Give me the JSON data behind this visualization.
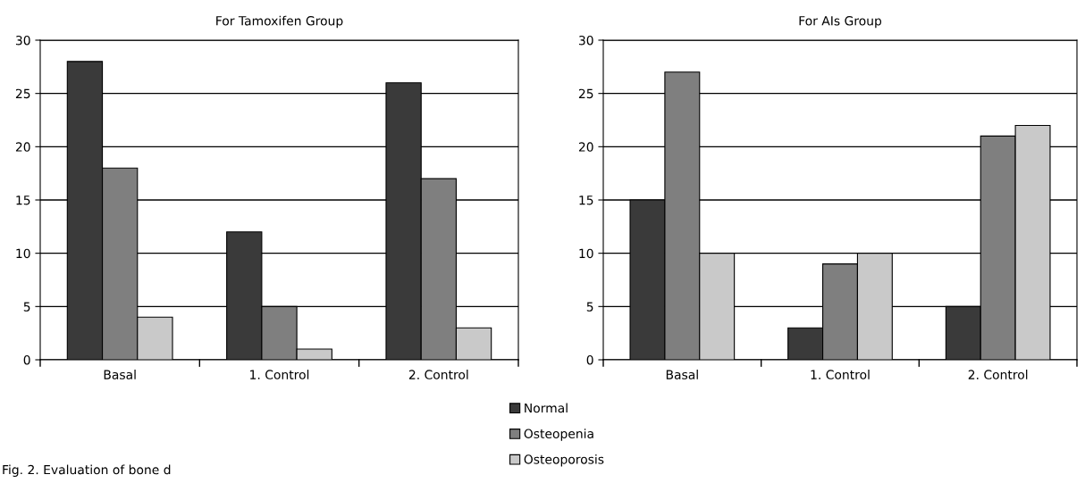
{
  "chart_data": [
    {
      "type": "bar",
      "title": "For Tamoxifen Group",
      "categories": [
        "Basal",
        "1. Control",
        "2. Control"
      ],
      "series": [
        {
          "name": "Normal",
          "color": "#3a3a3a",
          "values": [
            28,
            12,
            26
          ]
        },
        {
          "name": "Osteopenia",
          "color": "#7f7f7f",
          "values": [
            18,
            5,
            17
          ]
        },
        {
          "name": "Osteoporosis",
          "color": "#c9c9c9",
          "values": [
            4,
            1,
            3
          ]
        }
      ],
      "ylim": [
        0,
        30
      ],
      "yticks": [
        0,
        5,
        10,
        15,
        20,
        25,
        30
      ],
      "grid": "y",
      "legend": "bottom right",
      "annotations": [
        "Fig. 2. Evaluation of bone d"
      ]
    },
    {
      "type": "bar",
      "title": "For AIs Group",
      "categories": [
        "Basal",
        "1. Control",
        "2. Control"
      ],
      "series": [
        {
          "color": "#3a3a3a",
          "values": [
            15,
            3,
            5
          ]
        },
        {
          "color": "#7f7f7f",
          "values": [
            27,
            9,
            21
          ]
        },
        {
          "color": "#c9c9c9",
          "values": [
            10,
            10,
            22
          ]
        }
      ],
      "ylim": [
        0,
        30
      ],
      "yticks": [
        0,
        5,
        10,
        15,
        20,
        25,
        30
      ],
      "grid": "y"
    }
  ]
}
